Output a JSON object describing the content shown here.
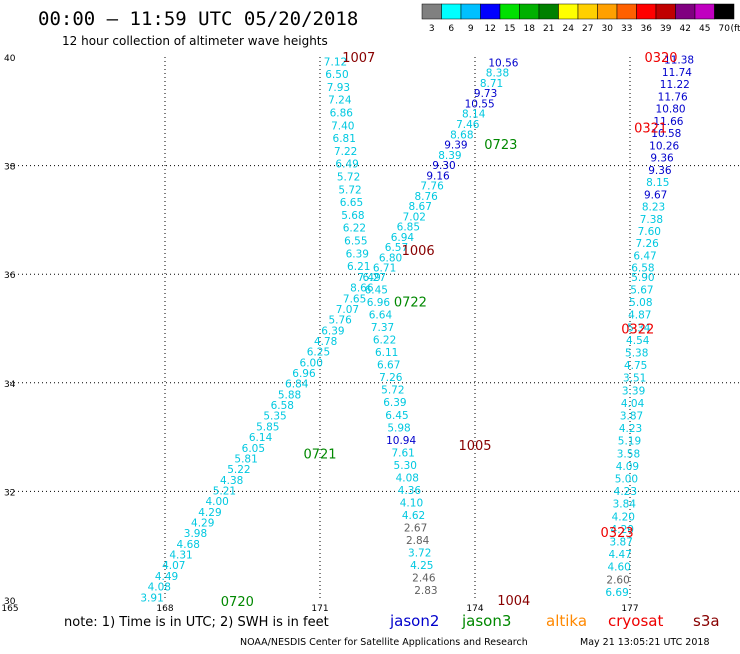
{
  "header": {
    "title": "00:00 – 11:59 UTC 05/20/2018",
    "subtitle": "12 hour collection of altimeter wave heights"
  },
  "legend": {
    "unit": "(ft)",
    "bins": [
      {
        "label": "3",
        "color": "#808080"
      },
      {
        "label": "6",
        "color": "#00ffff"
      },
      {
        "label": "9",
        "color": "#00c0ff"
      },
      {
        "label": "12",
        "color": "#0000ff"
      },
      {
        "label": "15",
        "color": "#00e000"
      },
      {
        "label": "18",
        "color": "#00b000"
      },
      {
        "label": "21",
        "color": "#008000"
      },
      {
        "label": "24",
        "color": "#ffff00"
      },
      {
        "label": "27",
        "color": "#ffd000"
      },
      {
        "label": "30",
        "color": "#ffa000"
      },
      {
        "label": "33",
        "color": "#ff6000"
      },
      {
        "label": "36",
        "color": "#ff0000"
      },
      {
        "label": "39",
        "color": "#c00000"
      },
      {
        "label": "42",
        "color": "#800080"
      },
      {
        "label": "45",
        "color": "#c000c0"
      },
      {
        "label": "70",
        "color": "#000000"
      }
    ]
  },
  "note": "note:  1) Time is in UTC;  2) SWH is in feet",
  "satellites": [
    {
      "name": "jason2",
      "color": "#0000cc"
    },
    {
      "name": "jason3",
      "color": "#008800"
    },
    {
      "name": "altika",
      "color": "#ff8800"
    },
    {
      "name": "cryosat",
      "color": "#ee0000"
    },
    {
      "name": "s3a",
      "color": "#880000"
    }
  ],
  "footer": {
    "source": "NOAA/NESDIS Center for Satellite Applications and Research",
    "timestamp": "May 21 13:05:21 UTC 2018"
  },
  "chart_data": {
    "type": "scatter",
    "title": "00:00 – 11:59 UTC 05/20/2018",
    "subtitle": "12 hour collection of altimeter wave heights",
    "x_ticks": [
      "165",
      "168",
      "171",
      "174",
      "177"
    ],
    "y_ticks": [
      "30",
      "32",
      "34",
      "36",
      "38",
      "40"
    ],
    "xlim": [
      165,
      178
    ],
    "ylim": [
      30,
      40
    ],
    "grid": true,
    "units": "ft",
    "colors": {
      "gray": "#606060",
      "cyan": "#00c8e0",
      "blue": "#0000cc",
      "darkgreen": "#008800",
      "darkred": "#880000",
      "red": "#ee0000"
    },
    "pass_labels": [
      {
        "text": "1007",
        "lon": 171.75,
        "lat": 40.0,
        "color": "darkred"
      },
      {
        "text": "0723",
        "lon": 174.5,
        "lat": 38.4,
        "color": "darkgreen"
      },
      {
        "text": "1006",
        "lon": 172.9,
        "lat": 36.45,
        "color": "darkred"
      },
      {
        "text": "0722",
        "lon": 172.75,
        "lat": 35.5,
        "color": "darkgreen"
      },
      {
        "text": "1005",
        "lon": 174.0,
        "lat": 32.85,
        "color": "darkred"
      },
      {
        "text": "0721",
        "lon": 171.0,
        "lat": 32.7,
        "color": "darkgreen"
      },
      {
        "text": "1004",
        "lon": 174.75,
        "lat": 30.0,
        "color": "darkred"
      },
      {
        "text": "0720",
        "lon": 169.4,
        "lat": 29.98,
        "color": "darkgreen"
      },
      {
        "text": "0320",
        "lon": 177.6,
        "lat": 40.0,
        "color": "red"
      },
      {
        "text": "0321",
        "lon": 177.4,
        "lat": 38.7,
        "color": "red"
      },
      {
        "text": "0322",
        "lon": 177.15,
        "lat": 35.0,
        "color": "red"
      },
      {
        "text": "0323",
        "lon": 176.75,
        "lat": 31.25,
        "color": "red"
      }
    ],
    "series": [
      {
        "name": "1007",
        "start": [
          171.3,
          39.92
        ],
        "end": [
          171.75,
          36.15
        ],
        "values": [
          "7.12",
          "6.50",
          "7.93",
          "7.24",
          "6.86",
          "7.40",
          "6.81",
          "7.22",
          "6.49",
          "5.72",
          "5.72",
          "6.65",
          "5.68",
          "6.22",
          "6.55",
          "6.39",
          "6.21"
        ],
        "colors": [
          "cyan"
        ]
      },
      {
        "name": "0723",
        "start": [
          174.55,
          39.9
        ],
        "end": [
          172.25,
          36.12
        ],
        "values": [
          "10.56",
          "8.38",
          "8.71",
          "9.73",
          "10.55",
          "8.14",
          "7.46",
          "8.68",
          "9.39",
          "8.39",
          "9.30",
          "9.16",
          "7.76",
          "8.76",
          "8.67",
          "7.02",
          "6.85",
          "6.94",
          "6.57",
          "6.80",
          "6.71"
        ],
        "colors": [
          "blue",
          "cyan",
          "cyan",
          "blue",
          "blue",
          "cyan",
          "cyan",
          "cyan",
          "blue",
          "cyan",
          "blue",
          "blue",
          "cyan",
          "cyan",
          "cyan",
          "cyan",
          "cyan",
          "cyan",
          "cyan",
          "cyan",
          "cyan"
        ]
      },
      {
        "name": "1006",
        "start": [
          172.05,
          35.95
        ],
        "end": [
          173.05,
          30.18
        ],
        "values": [
          "6.27",
          "6.45",
          "6.96",
          "6.64",
          "7.37",
          "6.22",
          "6.11",
          "6.67",
          "7.26",
          "5.72",
          "6.39",
          "6.45",
          "5.98",
          "10.94",
          "7.61",
          "5.30",
          "4.08",
          "4.36",
          "4.10",
          "4.62",
          "2.67",
          "2.84",
          "3.72",
          "4.25",
          "2.46",
          "2.83"
        ],
        "colors": [
          "cyan",
          "cyan",
          "cyan",
          "cyan",
          "cyan",
          "cyan",
          "cyan",
          "cyan",
          "cyan",
          "cyan",
          "cyan",
          "cyan",
          "cyan",
          "blue",
          "cyan",
          "cyan",
          "cyan",
          "cyan",
          "cyan",
          "cyan",
          "gray",
          "gray",
          "cyan",
          "cyan",
          "gray",
          "gray"
        ]
      },
      {
        "name": "0722",
        "start": [
          171.95,
          35.95
        ],
        "end": [
          167.75,
          30.05
        ],
        "values": [
          "7.49",
          "8.66",
          "7.65",
          "7.07",
          "5.76",
          "6.39",
          "4.78",
          "6.25",
          "6.00",
          "6.96",
          "6.84",
          "5.88",
          "6.58",
          "5.35",
          "5.85",
          "6.14",
          "6.05",
          "5.81",
          "5.22",
          "4.38",
          "5.21",
          "4.00",
          "4.29",
          "4.29",
          "3.98",
          "4.68",
          "4.31",
          "4.07",
          "4.49",
          "4.08",
          "3.91"
        ],
        "colors": [
          "cyan"
        ]
      },
      {
        "name": "0320",
        "start": [
          177.95,
          39.95
        ],
        "end": [
          177.25,
          36.12
        ],
        "values": [
          "11.38",
          "11.74",
          "11.22",
          "11.76",
          "10.80",
          "11.66",
          "10.58",
          "10.26",
          "9.36",
          "9.36",
          "8.15",
          "9.67",
          "8.23",
          "7.38",
          "7.60",
          "7.26",
          "6.47",
          "6.58"
        ],
        "colors": [
          "blue",
          "blue",
          "blue",
          "blue",
          "blue",
          "blue",
          "blue",
          "blue",
          "blue",
          "blue",
          "cyan",
          "blue",
          "cyan",
          "cyan",
          "cyan",
          "cyan",
          "cyan",
          "cyan"
        ]
      },
      {
        "name": "0322",
        "start": [
          177.25,
          35.95
        ],
        "end": [
          176.75,
          30.15
        ],
        "values": [
          "5.90",
          "5.67",
          "5.08",
          "4.87",
          "5.34",
          "4.54",
          "5.38",
          "4.75",
          "3.51",
          "3.39",
          "4.04",
          "3.87",
          "4.23",
          "5.19",
          "3.58",
          "4.09",
          "5.00",
          "4.23",
          "3.84",
          "4.20",
          "4.20",
          "3.87",
          "4.47",
          "4.60",
          "2.60",
          "6.69"
        ],
        "colors": [
          "cyan",
          "cyan",
          "cyan",
          "cyan",
          "cyan",
          "cyan",
          "cyan",
          "cyan",
          "cyan",
          "cyan",
          "cyan",
          "cyan",
          "cyan",
          "cyan",
          "cyan",
          "cyan",
          "cyan",
          "cyan",
          "cyan",
          "cyan",
          "cyan",
          "cyan",
          "cyan",
          "cyan",
          "gray",
          "cyan"
        ]
      }
    ]
  }
}
